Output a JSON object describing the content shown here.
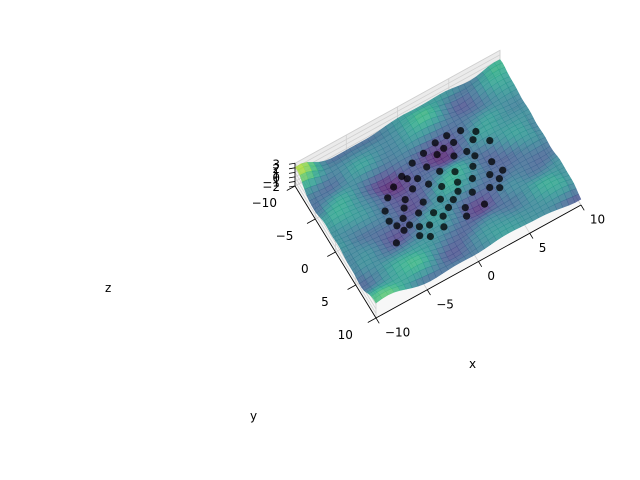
{
  "chart_data": {
    "type": "surface3d",
    "title": "",
    "x": {
      "label": "x",
      "ticks": [
        -10,
        -5,
        0,
        5,
        10
      ],
      "tick_labels": [
        "−10",
        "−5",
        "0",
        "5",
        "10"
      ],
      "range": [
        -10,
        10
      ]
    },
    "y": {
      "label": "y",
      "ticks": [
        -10,
        -5,
        0,
        5,
        10
      ],
      "tick_labels": [
        "−10",
        "−5",
        "0",
        "5",
        "10"
      ],
      "range": [
        -10,
        10
      ]
    },
    "z": {
      "label": "z",
      "ticks": [
        3,
        2,
        1,
        0,
        -1,
        -2
      ],
      "tick_labels": [
        "3",
        "2",
        "1",
        "0",
        "−1",
        "−2"
      ],
      "range": [
        -2,
        3
      ]
    },
    "surface": {
      "colormap": "viridis",
      "x_range": [
        -10,
        10
      ],
      "y_range": [
        -10,
        10
      ],
      "alpha": 0.8
    },
    "scatter": {
      "color": "#000000",
      "points": [
        [
          -5.2,
          1.1,
          0.4
        ],
        [
          -4.8,
          2.0,
          0.2
        ],
        [
          -4.5,
          3.0,
          0.3
        ],
        [
          -4.0,
          1.5,
          0.1
        ],
        [
          -3.8,
          2.6,
          0.0
        ],
        [
          -3.5,
          0.5,
          0.3
        ],
        [
          -3.2,
          3.5,
          0.2
        ],
        [
          -3.0,
          -0.5,
          0.1
        ],
        [
          -2.6,
          1.8,
          0.0
        ],
        [
          -2.4,
          4.0,
          0.3
        ],
        [
          -2.0,
          -1.2,
          0.2
        ],
        [
          -1.8,
          0.9,
          0.1
        ],
        [
          -1.5,
          2.7,
          0.0
        ],
        [
          -1.2,
          -2.0,
          0.3
        ],
        [
          -1.0,
          3.8,
          0.2
        ],
        [
          -0.6,
          -0.8,
          0.1
        ],
        [
          -0.4,
          1.6,
          0.0
        ],
        [
          0.0,
          -2.8,
          0.2
        ],
        [
          0.2,
          0.4,
          0.3
        ],
        [
          0.5,
          2.5,
          0.1
        ],
        [
          0.8,
          -1.6,
          0.0
        ],
        [
          1.0,
          4.2,
          0.2
        ],
        [
          1.3,
          -3.5,
          0.3
        ],
        [
          1.6,
          0.8,
          0.1
        ],
        [
          1.9,
          -0.6,
          0.0
        ],
        [
          2.2,
          2.9,
          0.2
        ],
        [
          2.5,
          -2.4,
          0.1
        ],
        [
          2.8,
          1.4,
          0.3
        ],
        [
          3.1,
          -4.0,
          0.0
        ],
        [
          3.4,
          0.0,
          0.2
        ],
        [
          3.7,
          3.4,
          0.1
        ],
        [
          4.0,
          -1.0,
          0.3
        ],
        [
          4.3,
          1.9,
          0.0
        ],
        [
          4.6,
          -3.0,
          0.2
        ],
        [
          5.0,
          0.6,
          0.1
        ],
        [
          5.4,
          2.3,
          0.2
        ],
        [
          -4.2,
          -1.8,
          0.1
        ],
        [
          -3.3,
          -2.6,
          0.2
        ],
        [
          -2.2,
          -3.4,
          0.0
        ],
        [
          -0.9,
          -4.1,
          0.3
        ],
        [
          0.4,
          -4.6,
          0.1
        ],
        [
          1.7,
          -5.0,
          0.2
        ],
        [
          2.9,
          -5.2,
          0.0
        ],
        [
          4.1,
          -4.8,
          0.2
        ],
        [
          5.2,
          -3.8,
          0.1
        ],
        [
          -5.6,
          3.9,
          0.2
        ],
        [
          -1.4,
          5.0,
          0.1
        ],
        [
          0.7,
          5.3,
          0.3
        ],
        [
          2.6,
          4.9,
          0.0
        ],
        [
          4.4,
          4.1,
          0.2
        ],
        [
          5.8,
          -1.9,
          0.1
        ],
        [
          -5.0,
          -0.4,
          0.2
        ],
        [
          -2.8,
          5.2,
          0.0
        ],
        [
          3.6,
          -2.0,
          0.3
        ],
        [
          -0.2,
          3.1,
          0.1
        ],
        [
          1.2,
          1.9,
          0.2
        ],
        [
          -1.9,
          -2.8,
          0.0
        ],
        [
          2.1,
          -3.9,
          0.1
        ],
        [
          -3.6,
          4.6,
          0.3
        ],
        [
          4.8,
          3.0,
          0.1
        ]
      ]
    }
  }
}
